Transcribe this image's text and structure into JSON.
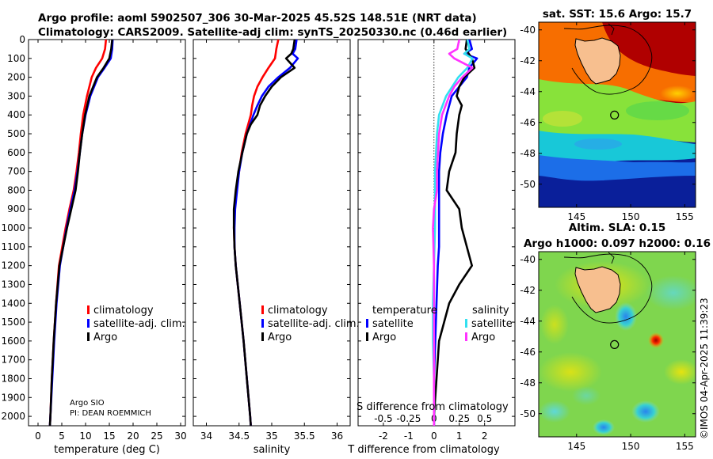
{
  "header": {
    "title_line1": "Argo profile: aoml 5902507_306 30-Mar-2025 45.52S 148.51E (NRT data)",
    "title_line2": "Climatology: CARS2009. Satellite-adj clim: synTS_20250330.nc (0.46d earlier)"
  },
  "colors": {
    "climatology": "#ff0000",
    "satellite_adj": "#0000ff",
    "argo": "#000000",
    "temperature_satellite": "#0000ff",
    "salinity_satellite": "#33e0f0",
    "salinity_argo": "#ff33ff"
  },
  "credits": {
    "line1": "Argo SIO",
    "line2": "PI: DEAN ROEMMICH",
    "stamp": "©IMOS 04-Apr-2025 11:39:23"
  },
  "chart_data": [
    {
      "type": "line",
      "name": "temperature-profile",
      "xlabel": "temperature (deg C)",
      "ylabel": "",
      "xlim": [
        -2,
        31
      ],
      "ylim": [
        2050,
        0
      ],
      "xticks": [
        "0",
        "5",
        "10",
        "15",
        "20",
        "25",
        "30"
      ],
      "yticks": [
        "0",
        "100",
        "200",
        "300",
        "400",
        "500",
        "600",
        "700",
        "800",
        "900",
        "1000",
        "1100",
        "1200",
        "1300",
        "1400",
        "1500",
        "1600",
        "1700",
        "1800",
        "1900",
        "2000"
      ],
      "legend": [
        "climatology",
        "satellite-adj. clim.",
        "Argo"
      ],
      "series": [
        {
          "name": "climatology",
          "depth": [
            0,
            50,
            100,
            150,
            200,
            300,
            400,
            500,
            600,
            700,
            800,
            900,
            1000,
            1200,
            1400,
            1600,
            1800,
            2000,
            2050
          ],
          "values": [
            14.3,
            14.1,
            13.5,
            12.2,
            11.3,
            10.3,
            9.5,
            9.0,
            8.6,
            8.1,
            7.5,
            6.6,
            5.8,
            4.4,
            3.8,
            3.3,
            2.9,
            2.6,
            2.5
          ]
        },
        {
          "name": "satellite-adj. clim.",
          "depth": [
            0,
            50,
            100,
            150,
            200,
            300,
            400,
            500,
            600,
            700,
            800,
            900,
            1000,
            1200,
            1400,
            1600,
            1800,
            2000,
            2050
          ],
          "values": [
            15.7,
            15.6,
            15.3,
            14.0,
            12.6,
            11.0,
            10.0,
            9.3,
            8.8,
            8.3,
            7.7,
            6.8,
            6.0,
            4.6,
            3.9,
            3.4,
            3.0,
            2.6,
            2.5
          ]
        },
        {
          "name": "Argo",
          "depth": [
            0,
            50,
            100,
            150,
            200,
            300,
            400,
            500,
            600,
            700,
            800,
            900,
            1000,
            1200,
            1400,
            1600,
            1800,
            2000,
            2050
          ],
          "values": [
            15.6,
            15.4,
            15.0,
            13.8,
            12.4,
            10.8,
            9.9,
            9.3,
            8.8,
            8.4,
            7.9,
            7.0,
            6.1,
            4.5,
            3.8,
            3.3,
            2.9,
            2.6,
            2.5
          ]
        }
      ]
    },
    {
      "type": "line",
      "name": "salinity-profile",
      "xlabel": "salinity",
      "xlim": [
        33.8,
        36.2
      ],
      "ylim": [
        2050,
        0
      ],
      "xticks": [
        "34",
        "34.5",
        "35",
        "35.5",
        "36"
      ],
      "legend": [
        "climatology",
        "satellite-adj. clim.",
        "Argo"
      ],
      "series": [
        {
          "name": "climatology",
          "depth": [
            0,
            50,
            100,
            150,
            200,
            250,
            300,
            350,
            400,
            500,
            600,
            700,
            800,
            900,
            1000,
            1100,
            1200,
            1400,
            1600,
            1800,
            2000,
            2050
          ],
          "values": [
            35.1,
            35.07,
            35.05,
            34.95,
            34.86,
            34.78,
            34.73,
            34.7,
            34.68,
            34.6,
            34.54,
            34.5,
            34.46,
            34.43,
            34.42,
            34.43,
            34.45,
            34.51,
            34.57,
            34.62,
            34.67,
            34.68
          ]
        },
        {
          "name": "satellite-adj. clim.",
          "depth": [
            0,
            50,
            75,
            100,
            150,
            200,
            250,
            300,
            350,
            400,
            500,
            600,
            700,
            800,
            900,
            1000,
            1100,
            1200,
            1400,
            1600,
            1800,
            2000,
            2050
          ],
          "values": [
            35.38,
            35.36,
            35.32,
            35.4,
            35.28,
            35.1,
            34.95,
            34.85,
            34.78,
            34.72,
            34.62,
            34.55,
            34.5,
            34.47,
            34.44,
            34.43,
            34.43,
            34.45,
            34.51,
            34.57,
            34.62,
            34.67,
            34.68
          ]
        },
        {
          "name": "Argo",
          "depth": [
            0,
            50,
            75,
            100,
            150,
            200,
            250,
            300,
            350,
            400,
            450,
            500,
            600,
            700,
            800,
            900,
            1000,
            1100,
            1200,
            1400,
            1600,
            1800,
            2000,
            2050
          ],
          "values": [
            35.35,
            35.33,
            35.3,
            35.22,
            35.35,
            35.14,
            35.0,
            34.9,
            34.82,
            34.78,
            34.68,
            34.62,
            34.55,
            34.49,
            34.45,
            34.42,
            34.42,
            34.43,
            34.45,
            34.51,
            34.57,
            34.62,
            34.67,
            34.68
          ]
        }
      ]
    },
    {
      "type": "line",
      "name": "difference-profile",
      "xlabel": "T difference from climatology",
      "top_label": "S difference from climatology",
      "xlim": [
        -3,
        3.2
      ],
      "ylim": [
        2050,
        0
      ],
      "xticks": [
        "-2",
        "-1",
        "0",
        "1",
        "2"
      ],
      "top_ticks": [
        "-0.5",
        "-0.25",
        "0",
        "0.25",
        "0.5"
      ],
      "legend_temperature": {
        "heading": "temperature",
        "items": [
          "satellite",
          "Argo"
        ]
      },
      "legend_salinity": {
        "heading": "salinity",
        "items": [
          "satellite",
          "Argo"
        ]
      },
      "series": [
        {
          "name": "temperature satellite",
          "depth": [
            0,
            50,
            75,
            100,
            150,
            200,
            300,
            400,
            500,
            600,
            700,
            800,
            900,
            1000,
            1100,
            1200,
            1400,
            1600,
            1800,
            2000,
            2050
          ],
          "values": [
            1.4,
            1.5,
            1.2,
            1.7,
            1.4,
            1.3,
            0.7,
            0.5,
            0.35,
            0.25,
            0.2,
            0.2,
            0.2,
            0.2,
            0.2,
            0.15,
            0.1,
            0.05,
            0.0,
            0.0,
            0.0
          ]
        },
        {
          "name": "temperature Argo",
          "depth": [
            0,
            50,
            100,
            150,
            200,
            250,
            300,
            350,
            400,
            500,
            600,
            700,
            800,
            900,
            1000,
            1100,
            1200,
            1300,
            1400,
            1500,
            1600,
            1800,
            2000,
            2050
          ],
          "values": [
            1.3,
            1.25,
            1.5,
            1.6,
            1.2,
            1.0,
            0.9,
            1.1,
            1.0,
            0.9,
            0.85,
            0.6,
            0.5,
            1.0,
            1.1,
            1.3,
            1.5,
            1.0,
            0.6,
            0.4,
            0.2,
            0.1,
            0.0,
            0.0
          ]
        },
        {
          "name": "salinity satellite",
          "depth": [
            0,
            50,
            75,
            100,
            150,
            200,
            300,
            400,
            500,
            600,
            700,
            800,
            900,
            1000,
            1200,
            1400,
            1600,
            1800,
            2000,
            2050
          ],
          "values": [
            0.33,
            0.35,
            0.3,
            0.38,
            0.33,
            0.24,
            0.12,
            0.05,
            0.03,
            0.02,
            0.01,
            0.01,
            0.01,
            0.01,
            0.0,
            -0.01,
            -0.01,
            0.0,
            0.0,
            0.0
          ]
        },
        {
          "name": "salinity Argo",
          "depth": [
            0,
            50,
            75,
            100,
            150,
            200,
            250,
            300,
            400,
            500,
            600,
            700,
            800,
            900,
            1000,
            1200,
            1400,
            1600,
            1800,
            2000,
            2050
          ],
          "values": [
            0.25,
            0.23,
            0.15,
            0.2,
            0.38,
            0.28,
            0.2,
            0.15,
            0.08,
            0.05,
            0.04,
            0.03,
            0.03,
            0.0,
            -0.01,
            0.0,
            0.0,
            0.0,
            0.0,
            0.0,
            0.0
          ]
        }
      ]
    },
    {
      "type": "heatmap",
      "name": "sst-map",
      "title": "sat. SST: 15.6 Argo: 15.7",
      "xlim": [
        141.5,
        156
      ],
      "ylim": [
        -51.5,
        -39.5
      ],
      "xticks": [
        "145",
        "150",
        "155"
      ],
      "yticks": [
        "-40",
        "-42",
        "-44",
        "-46",
        "-48",
        "-50"
      ],
      "float_position": {
        "lon": 148.51,
        "lat": -45.52
      }
    },
    {
      "type": "heatmap",
      "name": "sla-map",
      "title_line1": "Altim. SLA: 0.15",
      "title_line2": "Argo h1000: 0.097 h2000: 0.16",
      "xlim": [
        141.5,
        156
      ],
      "ylim": [
        -51.5,
        -39.5
      ],
      "xticks": [
        "145",
        "150",
        "155"
      ],
      "yticks": [
        "-40",
        "-42",
        "-44",
        "-46",
        "-48",
        "-50"
      ],
      "float_position": {
        "lon": 148.51,
        "lat": -45.52
      }
    }
  ]
}
